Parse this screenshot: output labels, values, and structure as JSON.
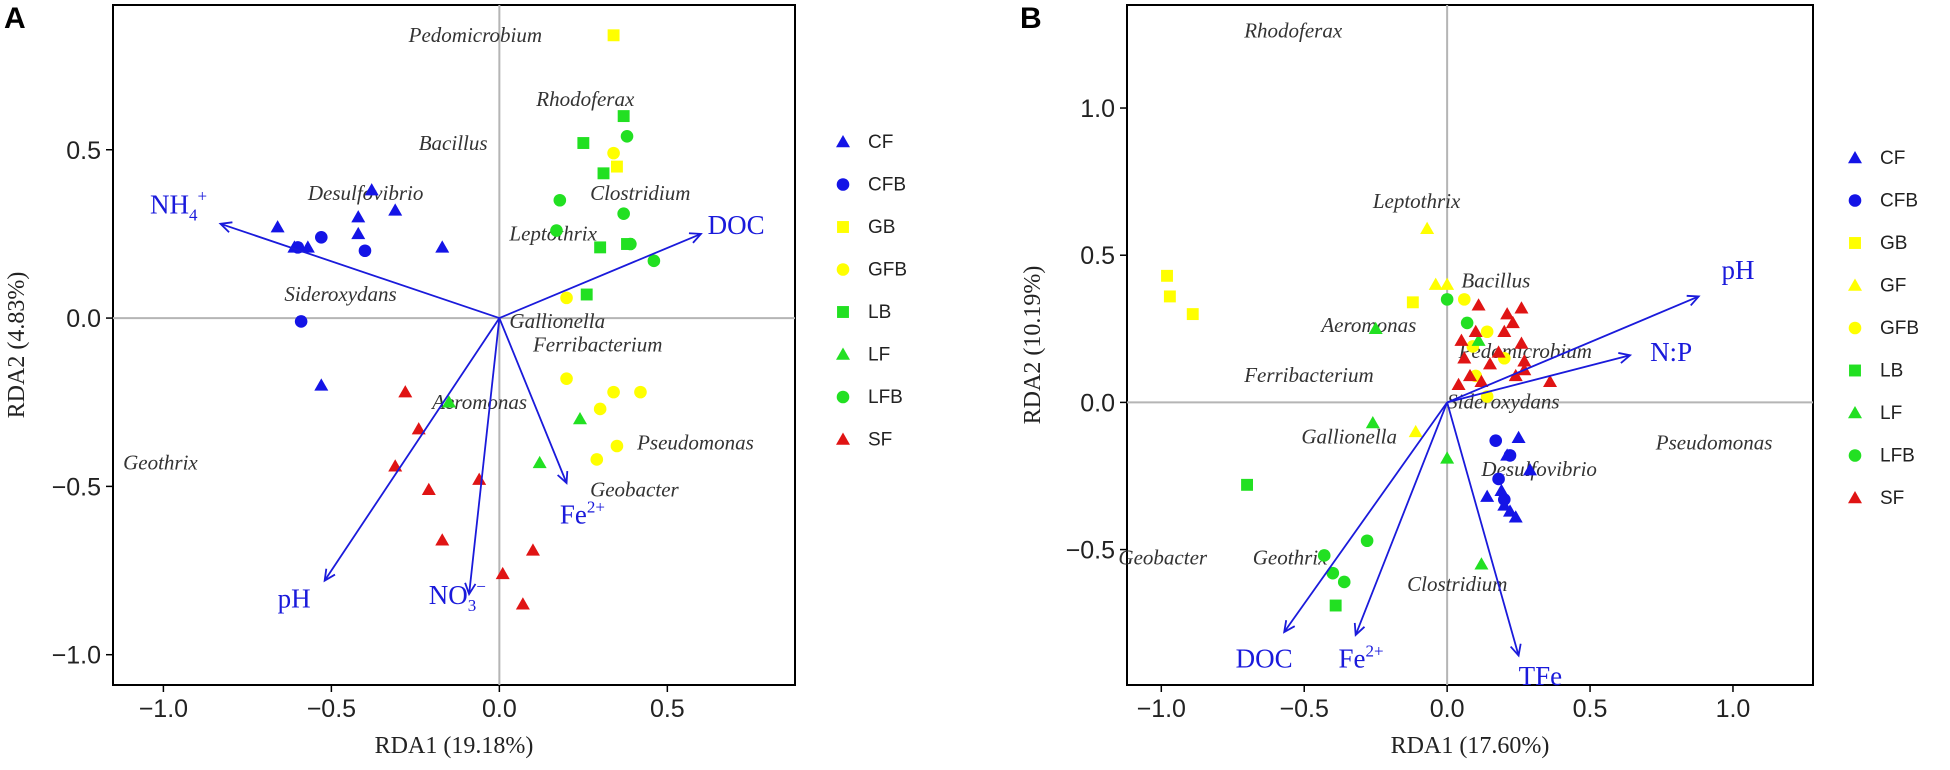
{
  "colors": {
    "CF": "#1414e6",
    "CFB": "#1414e6",
    "GB": "#ffff00",
    "GF": "#ffff00",
    "GFB": "#ffff00",
    "LB": "#22e022",
    "LF": "#22e022",
    "LFB": "#22e022",
    "SF": "#e01414",
    "arrow": "#1a1adb",
    "zero_line": "#b5b5b5"
  },
  "chart_data": [
    {
      "panel": "A",
      "type": "scatter",
      "xlabel": "RDA1 (19.18%)",
      "ylabel": "RDA2 (4.83%)",
      "xlim": [
        -1.15,
        0.88
      ],
      "ylim": [
        -1.09,
        0.93
      ],
      "xticks": [
        -1.0,
        -0.5,
        0.0,
        0.5
      ],
      "xtick_labels": [
        "−1.0",
        "−0.5",
        "0.0",
        "0.5"
      ],
      "yticks": [
        -1.0,
        -0.5,
        0.0,
        0.5
      ],
      "ytick_labels": [
        "−1.0",
        "−0.5",
        "0.0",
        "0.5"
      ],
      "legend": [
        {
          "label": "CF",
          "shape": "triangle"
        },
        {
          "label": "CFB",
          "shape": "circle"
        },
        {
          "label": "GB",
          "shape": "square"
        },
        {
          "label": "GFB",
          "shape": "circle"
        },
        {
          "label": "LB",
          "shape": "square"
        },
        {
          "label": "LF",
          "shape": "triangle"
        },
        {
          "label": "LFB",
          "shape": "circle"
        },
        {
          "label": "SF",
          "shape": "triangle"
        }
      ],
      "series": [
        {
          "name": "CF",
          "shape": "triangle",
          "points": [
            [
              -0.38,
              0.38
            ],
            [
              -0.31,
              0.32
            ],
            [
              -0.42,
              0.3
            ],
            [
              -0.42,
              0.25
            ],
            [
              -0.17,
              0.21
            ],
            [
              -0.66,
              0.27
            ],
            [
              -0.61,
              0.21
            ],
            [
              -0.57,
              0.21
            ],
            [
              -0.53,
              -0.2
            ]
          ]
        },
        {
          "name": "CFB",
          "shape": "circle",
          "points": [
            [
              -0.4,
              0.2
            ],
            [
              -0.53,
              0.24
            ],
            [
              -0.6,
              0.21
            ],
            [
              -0.59,
              -0.01
            ]
          ]
        },
        {
          "name": "GB",
          "shape": "square",
          "points": [
            [
              0.34,
              0.84
            ],
            [
              0.35,
              0.45
            ]
          ]
        },
        {
          "name": "GFB",
          "shape": "circle",
          "points": [
            [
              0.34,
              0.49
            ],
            [
              0.2,
              0.06
            ],
            [
              0.2,
              -0.18
            ],
            [
              0.34,
              -0.22
            ],
            [
              0.42,
              -0.22
            ],
            [
              0.3,
              -0.27
            ],
            [
              0.35,
              -0.38
            ],
            [
              0.29,
              -0.42
            ]
          ]
        },
        {
          "name": "LB",
          "shape": "square",
          "points": [
            [
              0.37,
              0.6
            ],
            [
              0.25,
              0.52
            ],
            [
              0.31,
              0.43
            ],
            [
              0.3,
              0.21
            ],
            [
              0.26,
              0.07
            ],
            [
              0.38,
              0.22
            ]
          ]
        },
        {
          "name": "LF",
          "shape": "triangle",
          "points": [
            [
              0.24,
              -0.3
            ],
            [
              0.12,
              -0.43
            ],
            [
              -0.15,
              -0.25
            ]
          ]
        },
        {
          "name": "LFB",
          "shape": "circle",
          "points": [
            [
              0.38,
              0.54
            ],
            [
              0.18,
              0.35
            ],
            [
              0.37,
              0.31
            ],
            [
              0.39,
              0.22
            ],
            [
              0.46,
              0.17
            ],
            [
              0.17,
              0.26
            ]
          ]
        },
        {
          "name": "SF",
          "shape": "triangle",
          "points": [
            [
              -0.28,
              -0.22
            ],
            [
              -0.24,
              -0.33
            ],
            [
              -0.31,
              -0.44
            ],
            [
              -0.21,
              -0.51
            ],
            [
              -0.06,
              -0.48
            ],
            [
              -0.17,
              -0.66
            ],
            [
              0.01,
              -0.76
            ],
            [
              0.1,
              -0.69
            ],
            [
              0.07,
              -0.85
            ]
          ]
        }
      ],
      "arrows": [
        {
          "label": "NH4+",
          "tip": [
            -0.83,
            0.28
          ],
          "label_pos": [
            -1.04,
            0.31
          ]
        },
        {
          "label": "DOC",
          "tip": [
            0.6,
            0.25
          ],
          "label_pos": [
            0.62,
            0.25
          ]
        },
        {
          "label": "pH",
          "tip": [
            -0.52,
            -0.78
          ],
          "label_pos": [
            -0.66,
            -0.86
          ]
        },
        {
          "label": "NO3-",
          "tip": [
            -0.09,
            -0.82
          ],
          "label_pos": [
            -0.21,
            -0.85
          ]
        },
        {
          "label": "Fe2+",
          "tip": [
            0.2,
            -0.49
          ],
          "label_pos": [
            0.18,
            -0.61
          ]
        }
      ],
      "arrow_labels": {
        "NH4": {
          "main": "NH",
          "sub": "4",
          "sup": "+"
        },
        "DOC": "DOC",
        "pH": "pH",
        "NO3": {
          "main": "NO",
          "sub": "3",
          "sup": "−"
        },
        "Fe2": {
          "main": "Fe",
          "sup": "2+"
        }
      },
      "species": [
        {
          "name": "Pedomicrobium",
          "pos": [
            -0.27,
            0.82
          ]
        },
        {
          "name": "Rhodoferax",
          "pos": [
            0.11,
            0.63
          ]
        },
        {
          "name": "Bacillus",
          "pos": [
            -0.24,
            0.5
          ]
        },
        {
          "name": "Desulfovibrio",
          "pos": [
            -0.57,
            0.35
          ]
        },
        {
          "name": "Clostridium",
          "pos": [
            0.27,
            0.35
          ]
        },
        {
          "name": "Leptothrix",
          "pos": [
            0.03,
            0.23
          ]
        },
        {
          "name": "Sideroxydans",
          "pos": [
            -0.64,
            0.05
          ]
        },
        {
          "name": "Gallionella",
          "pos": [
            0.03,
            -0.03
          ]
        },
        {
          "name": "Ferribacterium",
          "pos": [
            0.1,
            -0.1
          ]
        },
        {
          "name": "Aeromonas",
          "pos": [
            -0.2,
            -0.27
          ]
        },
        {
          "name": "Pseudomonas",
          "pos": [
            0.41,
            -0.39
          ]
        },
        {
          "name": "Geothrix",
          "pos": [
            -1.12,
            -0.45
          ]
        },
        {
          "name": "Geobacter",
          "pos": [
            0.27,
            -0.53
          ]
        }
      ]
    },
    {
      "panel": "B",
      "type": "scatter",
      "xlabel": "RDA1 (17.60%)",
      "ylabel": "RDA2 (10.19%)",
      "xlim": [
        -1.12,
        1.28
      ],
      "ylim": [
        -0.96,
        1.35
      ],
      "xticks": [
        -1.0,
        -0.5,
        0.0,
        0.5,
        1.0
      ],
      "xtick_labels": [
        "−1.0",
        "−0.5",
        "0.0",
        "0.5",
        "1.0"
      ],
      "yticks": [
        -0.5,
        0.0,
        0.5,
        1.0
      ],
      "ytick_labels": [
        "−0.5",
        "0.0",
        "0.5",
        "1.0"
      ],
      "legend": [
        {
          "label": "CF",
          "shape": "triangle"
        },
        {
          "label": "CFB",
          "shape": "circle"
        },
        {
          "label": "GB",
          "shape": "square"
        },
        {
          "label": "GF",
          "shape": "triangle"
        },
        {
          "label": "GFB",
          "shape": "circle"
        },
        {
          "label": "LB",
          "shape": "square"
        },
        {
          "label": "LF",
          "shape": "triangle"
        },
        {
          "label": "LFB",
          "shape": "circle"
        },
        {
          "label": "SF",
          "shape": "triangle"
        }
      ],
      "series": [
        {
          "name": "CF",
          "shape": "triangle",
          "points": [
            [
              0.25,
              -0.12
            ],
            [
              0.29,
              -0.23
            ],
            [
              0.21,
              -0.18
            ],
            [
              0.14,
              -0.32
            ],
            [
              0.19,
              -0.3
            ],
            [
              0.2,
              -0.35
            ],
            [
              0.22,
              -0.37
            ],
            [
              0.24,
              -0.39
            ]
          ]
        },
        {
          "name": "CFB",
          "shape": "circle",
          "points": [
            [
              0.17,
              -0.13
            ],
            [
              0.22,
              -0.18
            ],
            [
              0.18,
              -0.26
            ],
            [
              0.2,
              -0.33
            ]
          ]
        },
        {
          "name": "GB",
          "shape": "square",
          "points": [
            [
              -0.98,
              0.43
            ],
            [
              -0.97,
              0.36
            ],
            [
              -0.89,
              0.3
            ],
            [
              -0.12,
              0.34
            ]
          ]
        },
        {
          "name": "GF",
          "shape": "triangle",
          "points": [
            [
              -0.07,
              0.59
            ],
            [
              -0.04,
              0.4
            ],
            [
              0.0,
              0.4
            ],
            [
              -0.11,
              -0.1
            ]
          ]
        },
        {
          "name": "GFB",
          "shape": "circle",
          "points": [
            [
              0.06,
              0.35
            ],
            [
              0.1,
              0.09
            ],
            [
              0.14,
              0.02
            ],
            [
              0.2,
              0.15
            ],
            [
              0.14,
              0.24
            ],
            [
              0.09,
              0.19
            ]
          ]
        },
        {
          "name": "LB",
          "shape": "square",
          "points": [
            [
              -0.7,
              -0.28
            ],
            [
              -0.39,
              -0.69
            ]
          ]
        },
        {
          "name": "LF",
          "shape": "triangle",
          "points": [
            [
              -0.25,
              0.25
            ],
            [
              -0.26,
              -0.07
            ],
            [
              0.0,
              -0.19
            ],
            [
              0.12,
              -0.55
            ],
            [
              0.11,
              0.21
            ]
          ]
        },
        {
          "name": "LFB",
          "shape": "circle",
          "points": [
            [
              0.0,
              0.35
            ],
            [
              0.07,
              0.27
            ],
            [
              -0.28,
              -0.47
            ],
            [
              -0.4,
              -0.58
            ],
            [
              -0.36,
              -0.61
            ],
            [
              -0.43,
              -0.52
            ]
          ]
        },
        {
          "name": "SF",
          "shape": "triangle",
          "points": [
            [
              0.11,
              0.33
            ],
            [
              0.26,
              0.32
            ],
            [
              0.21,
              0.3
            ],
            [
              0.05,
              0.21
            ],
            [
              0.1,
              0.24
            ],
            [
              0.2,
              0.24
            ],
            [
              0.26,
              0.2
            ],
            [
              0.06,
              0.15
            ],
            [
              0.15,
              0.13
            ],
            [
              0.27,
              0.14
            ],
            [
              0.08,
              0.09
            ],
            [
              0.24,
              0.09
            ],
            [
              0.36,
              0.07
            ],
            [
              0.04,
              0.06
            ],
            [
              0.12,
              0.07
            ],
            [
              0.27,
              0.11
            ],
            [
              0.18,
              0.17
            ],
            [
              0.23,
              0.27
            ]
          ]
        }
      ],
      "arrows": [
        {
          "label": "pH",
          "tip": [
            0.88,
            0.36
          ],
          "label_pos": [
            0.96,
            0.42
          ]
        },
        {
          "label": "N:P",
          "tip": [
            0.64,
            0.16
          ],
          "label_pos": [
            0.71,
            0.14
          ]
        },
        {
          "label": "DOC",
          "tip": [
            -0.57,
            -0.78
          ],
          "label_pos": [
            -0.74,
            -0.9
          ]
        },
        {
          "label": "Fe2+",
          "tip": [
            -0.32,
            -0.79
          ],
          "label_pos": [
            -0.38,
            -0.9
          ]
        },
        {
          "label": "TFe",
          "tip": [
            0.25,
            -0.86
          ],
          "label_pos": [
            0.25,
            -0.96
          ]
        }
      ],
      "arrow_labels": {
        "pH": "pH",
        "NP": "N:P",
        "DOC": "DOC",
        "Fe2": {
          "main": "Fe",
          "sup": "2+"
        },
        "TFe": "TFe"
      },
      "species": [
        {
          "name": "Rhodoferax",
          "pos": [
            -0.71,
            1.24
          ]
        },
        {
          "name": "Leptothrix",
          "pos": [
            -0.26,
            0.66
          ]
        },
        {
          "name": "Bacillus",
          "pos": [
            0.05,
            0.39
          ]
        },
        {
          "name": "Aeromonas",
          "pos": [
            -0.44,
            0.24
          ]
        },
        {
          "name": "Pedomicrobium",
          "pos": [
            0.04,
            0.15
          ]
        },
        {
          "name": "Ferribacterium",
          "pos": [
            -0.71,
            0.07
          ]
        },
        {
          "name": "Sideroxydans",
          "pos": [
            0.0,
            -0.02
          ]
        },
        {
          "name": "Gallionella",
          "pos": [
            -0.51,
            -0.14
          ]
        },
        {
          "name": "Pseudomonas",
          "pos": [
            0.73,
            -0.16
          ]
        },
        {
          "name": "Desulfovibrio",
          "pos": [
            0.12,
            -0.25
          ]
        },
        {
          "name": "Geobacter",
          "pos": [
            -1.15,
            -0.55
          ]
        },
        {
          "name": "Geothrix",
          "pos": [
            -0.68,
            -0.55
          ]
        },
        {
          "name": "Clostridium",
          "pos": [
            -0.14,
            -0.64
          ]
        }
      ]
    }
  ]
}
